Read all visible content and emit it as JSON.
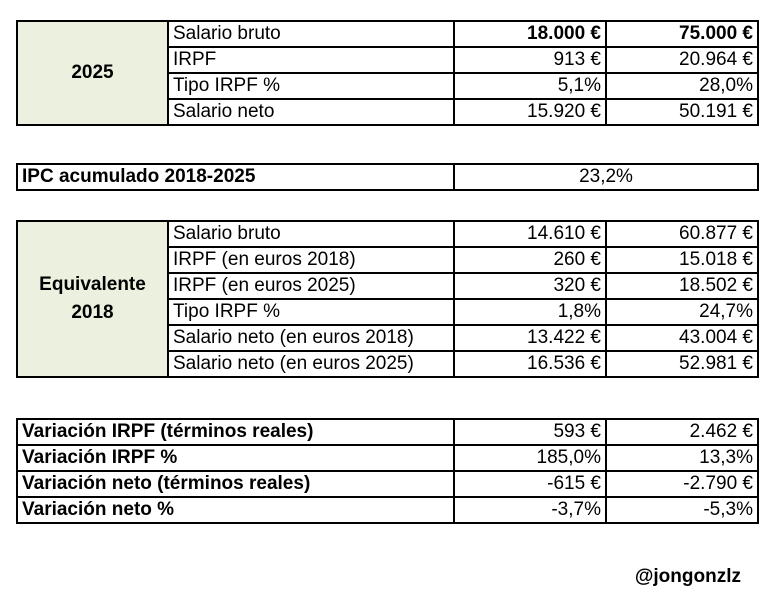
{
  "table_2025": {
    "label": "2025",
    "rows": [
      {
        "concept": "Salario bruto",
        "v1": "18.000 €",
        "v2": "75.000 €"
      },
      {
        "concept": "IRPF",
        "v1": "913 €",
        "v2": "20.964 €"
      },
      {
        "concept": "Tipo IRPF %",
        "v1": "5,1%",
        "v2": "28,0%"
      },
      {
        "concept": "Salario neto",
        "v1": "15.920 €",
        "v2": "50.191 €"
      }
    ]
  },
  "ipc": {
    "label": "IPC acumulado 2018-2025",
    "value": "23,2%"
  },
  "table_2018": {
    "label_line1": "Equivalente",
    "label_line2": "2018",
    "rows": [
      {
        "concept": "Salario bruto",
        "v1": "14.610 €",
        "v2": "60.877 €"
      },
      {
        "concept": "IRPF (en euros 2018)",
        "v1": "260 €",
        "v2": "15.018 €"
      },
      {
        "concept": "IRPF (en euros 2025)",
        "v1": "320 €",
        "v2": "18.502 €"
      },
      {
        "concept": "Tipo IRPF %",
        "v1": "1,8%",
        "v2": "24,7%"
      },
      {
        "concept": "Salario neto (en euros 2018)",
        "v1": "13.422 €",
        "v2": "43.004 €"
      },
      {
        "concept": "Salario neto (en euros 2025)",
        "v1": "16.536 €",
        "v2": "52.981 €"
      }
    ]
  },
  "variations": {
    "rows": [
      {
        "concept": "Variación IRPF (términos reales)",
        "v1": "593 €",
        "v2": "2.462 €"
      },
      {
        "concept": "Variación IRPF %",
        "v1": "185,0%",
        "v2": "13,3%"
      },
      {
        "concept": "Variación neto (términos reales)",
        "v1": "-615 €",
        "v2": "-2.790 €"
      },
      {
        "concept": "Variación neto %",
        "v1": "-3,7%",
        "v2": "-5,3%"
      }
    ]
  },
  "footer": {
    "handle": "@jongonzlz"
  },
  "colors": {
    "label_fill": "#ebf1de",
    "border": "#000000"
  }
}
